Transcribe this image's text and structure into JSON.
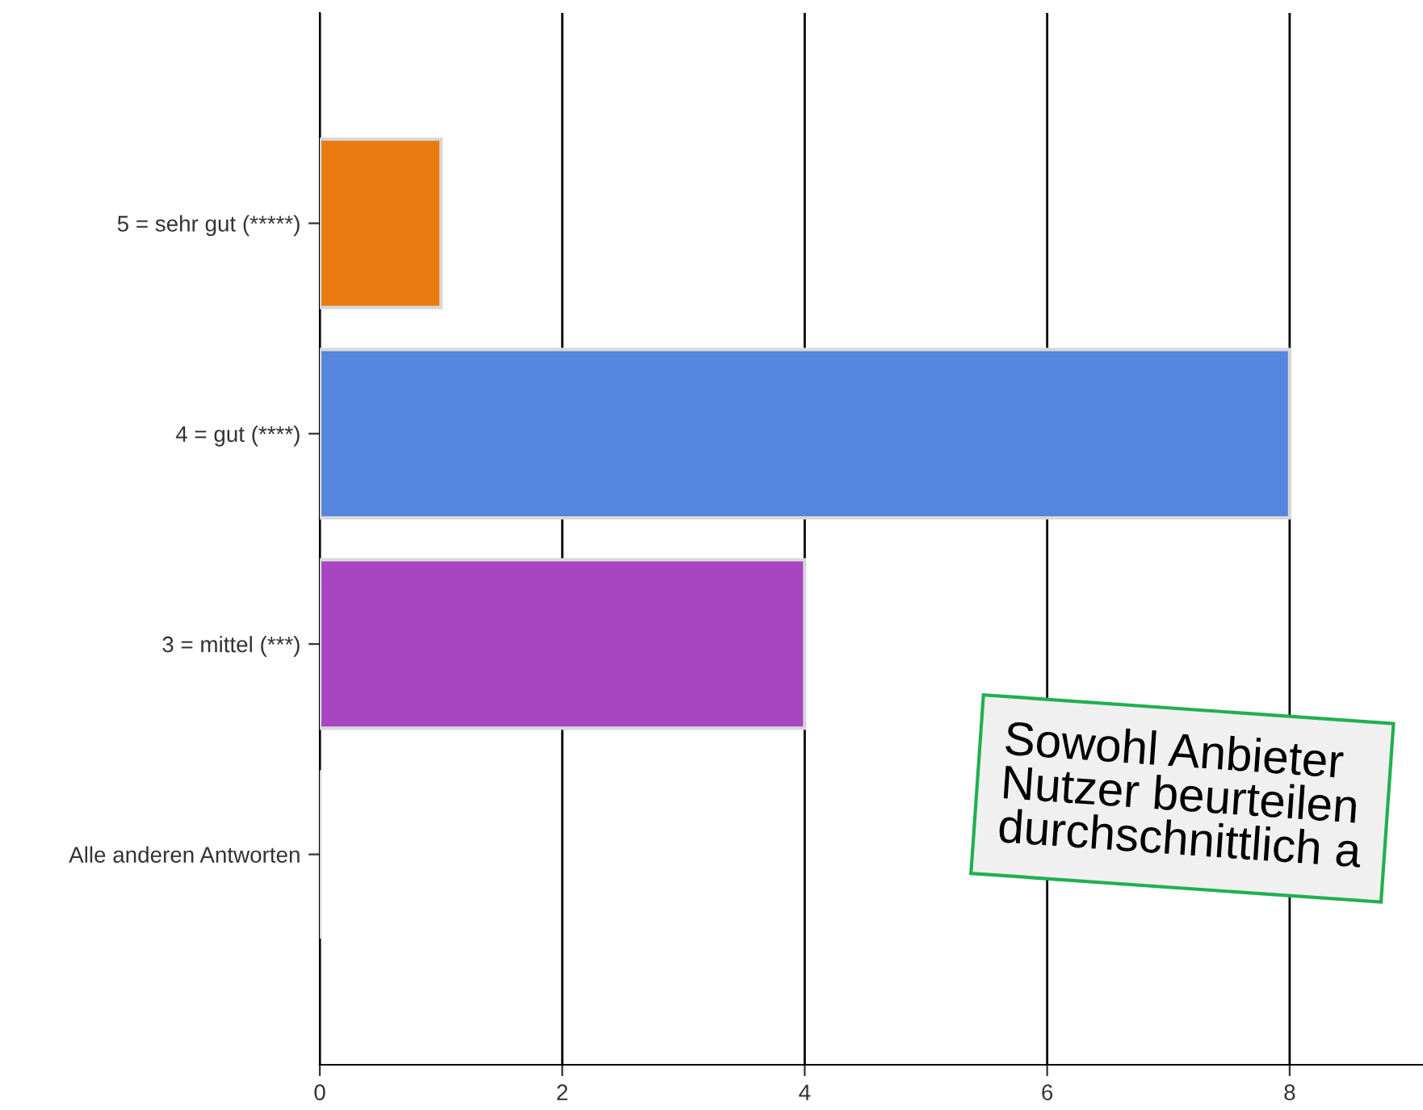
{
  "chart_data": {
    "type": "bar",
    "orientation": "horizontal",
    "categories": [
      "5 = sehr gut (*****)",
      "4 = gut (****)",
      "3 = mittel (***)",
      "Alle anderen Antworten"
    ],
    "values": [
      1,
      8,
      4,
      0
    ],
    "colors": [
      "#e87a10",
      "#5585dc",
      "#a845c0",
      "#d8d8d8"
    ],
    "xlim": [
      0,
      9.1
    ],
    "xticks": [
      0,
      2,
      4,
      6,
      8
    ],
    "grid": "x",
    "legend": false,
    "annotations": [
      "Sowohl Anbieter\nNutzer beurteilen\ndurchschnittlich a"
    ]
  }
}
